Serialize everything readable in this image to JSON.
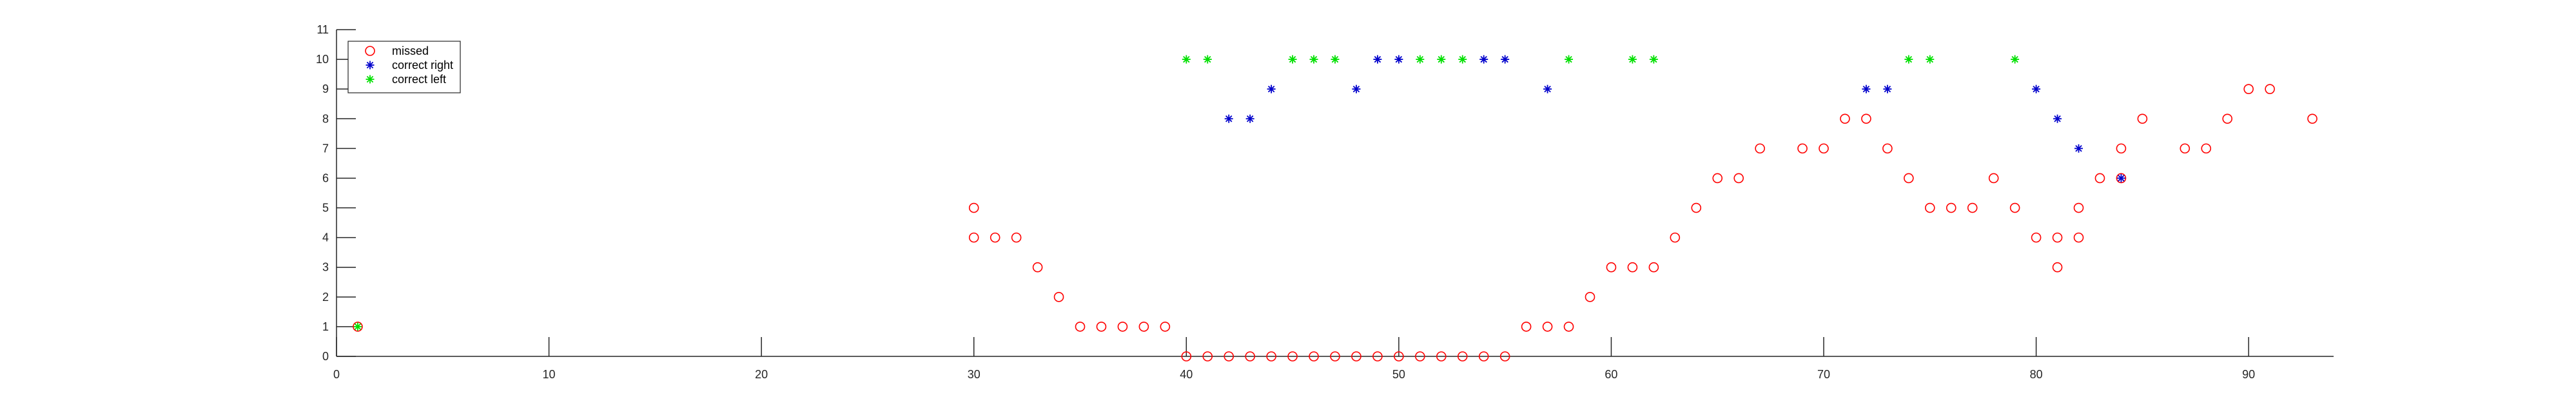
{
  "chart_data": {
    "type": "scatter",
    "xlim": [
      0,
      94
    ],
    "ylim": [
      0,
      11
    ],
    "x_ticks": [
      0,
      10,
      20,
      30,
      40,
      50,
      60,
      70,
      80,
      90
    ],
    "y_ticks": [
      0,
      1,
      2,
      3,
      4,
      5,
      6,
      7,
      8,
      9,
      10,
      11
    ],
    "title": "",
    "xlabel": "",
    "ylabel": "",
    "grid": false,
    "legend_location": "top-left",
    "series": [
      {
        "name": "missed",
        "marker": "circle",
        "color": "#ff0000",
        "points": [
          [
            1,
            1
          ],
          [
            30,
            4
          ],
          [
            30,
            5
          ],
          [
            31,
            4
          ],
          [
            32,
            4
          ],
          [
            33,
            3
          ],
          [
            34,
            2
          ],
          [
            35,
            1
          ],
          [
            36,
            1
          ],
          [
            37,
            1
          ],
          [
            38,
            1
          ],
          [
            39,
            1
          ],
          [
            40,
            0
          ],
          [
            41,
            0
          ],
          [
            42,
            0
          ],
          [
            43,
            0
          ],
          [
            44,
            0
          ],
          [
            45,
            0
          ],
          [
            46,
            0
          ],
          [
            47,
            0
          ],
          [
            48,
            0
          ],
          [
            49,
            0
          ],
          [
            50,
            0
          ],
          [
            51,
            0
          ],
          [
            52,
            0
          ],
          [
            53,
            0
          ],
          [
            54,
            0
          ],
          [
            55,
            0
          ],
          [
            56,
            1
          ],
          [
            57,
            1
          ],
          [
            58,
            1
          ],
          [
            59,
            2
          ],
          [
            60,
            3
          ],
          [
            61,
            3
          ],
          [
            62,
            3
          ],
          [
            63,
            4
          ],
          [
            64,
            5
          ],
          [
            65,
            6
          ],
          [
            66,
            6
          ],
          [
            67,
            7
          ],
          [
            69,
            7
          ],
          [
            70,
            7
          ],
          [
            71,
            8
          ],
          [
            72,
            8
          ],
          [
            73,
            7
          ],
          [
            74,
            6
          ],
          [
            75,
            5
          ],
          [
            76,
            5
          ],
          [
            77,
            5
          ],
          [
            78,
            6
          ],
          [
            79,
            5
          ],
          [
            80,
            4
          ],
          [
            81,
            4
          ],
          [
            81,
            3
          ],
          [
            82,
            5
          ],
          [
            82,
            4
          ],
          [
            83,
            6
          ],
          [
            84,
            7
          ],
          [
            84,
            6
          ],
          [
            85,
            8
          ],
          [
            87,
            7
          ],
          [
            88,
            7
          ],
          [
            89,
            8
          ],
          [
            90,
            9
          ],
          [
            91,
            9
          ],
          [
            93,
            8
          ]
        ]
      },
      {
        "name": "correct right",
        "marker": "star",
        "color": "#0000cc",
        "points": [
          [
            42,
            8
          ],
          [
            43,
            8
          ],
          [
            44,
            9
          ],
          [
            48,
            9
          ],
          [
            49,
            10
          ],
          [
            50,
            10
          ],
          [
            54,
            10
          ],
          [
            55,
            10
          ],
          [
            57,
            9
          ],
          [
            72,
            9
          ],
          [
            73,
            9
          ],
          [
            80,
            9
          ],
          [
            81,
            8
          ],
          [
            82,
            7
          ],
          [
            84,
            6
          ]
        ]
      },
      {
        "name": "correct left",
        "marker": "star",
        "color": "#00e000",
        "points": [
          [
            1,
            1
          ],
          [
            40,
            10
          ],
          [
            41,
            10
          ],
          [
            45,
            10
          ],
          [
            46,
            10
          ],
          [
            47,
            10
          ],
          [
            51,
            10
          ],
          [
            52,
            10
          ],
          [
            53,
            10
          ],
          [
            58,
            10
          ],
          [
            61,
            10
          ],
          [
            62,
            10
          ],
          [
            74,
            10
          ],
          [
            75,
            10
          ],
          [
            79,
            10
          ]
        ]
      }
    ]
  }
}
